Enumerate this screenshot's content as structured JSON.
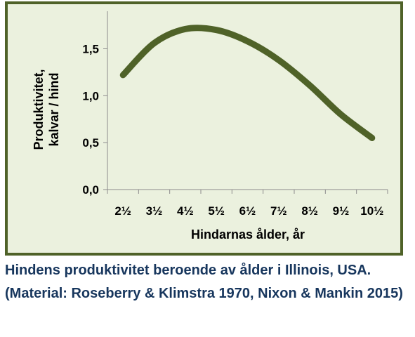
{
  "chart_data": {
    "type": "line",
    "title": "",
    "xlabel": "Hindarnas ålder, år",
    "ylabel_line1": "Produktivitet,",
    "ylabel_line2": "kalvar / hind",
    "categories": [
      "2½",
      "3½",
      "4½",
      "5½",
      "6½",
      "7½",
      "8½",
      "9½",
      "10½"
    ],
    "x": [
      2.5,
      3.5,
      4.5,
      5.5,
      6.5,
      7.5,
      8.5,
      9.5,
      10.5
    ],
    "yticks": [
      "0,0",
      "0,5",
      "1,0",
      "1,5"
    ],
    "ylim": [
      0,
      1.9
    ],
    "grid": false,
    "legend": "none",
    "series": [
      {
        "values": [
          1.22,
          1.56,
          1.71,
          1.7,
          1.58,
          1.38,
          1.11,
          0.8,
          0.55
        ],
        "color": "#4f6228"
      }
    ]
  },
  "caption": "Hindens produktivitet beroende av ålder i Illinois, USA. (Material: Roseberry & Klimstra 1970, Nixon & Mankin 2015)",
  "colors": {
    "frame": "#4f6228",
    "plot_background": "#ebf1de",
    "line": "#4f6228",
    "caption_text": "#17365d"
  }
}
